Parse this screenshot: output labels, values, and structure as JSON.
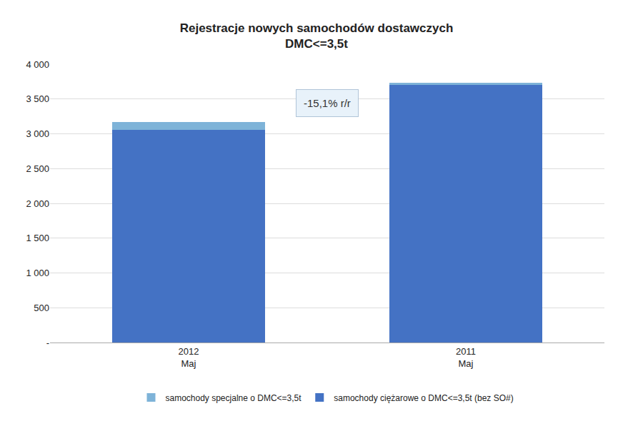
{
  "chart_data": {
    "type": "bar",
    "title": "Rejestracje nowych samochodów dostawczych\nDMC<=3,5t",
    "categories": [
      "2012\nMaj",
      "2011\nMaj"
    ],
    "series": [
      {
        "name": "samochody ciężarowe o DMC<=3,5t (bez SO#)",
        "color": "#4472C4",
        "values": [
          3060,
          3700
        ]
      },
      {
        "name": "samochody specjalne o DMC<=3,5t",
        "color": "#7EB3D8",
        "values": [
          110,
          30
        ]
      }
    ],
    "stacked": true,
    "annotation": "-15,1% r/r",
    "ylim": [
      0,
      4000
    ],
    "yticks": [
      {
        "value": 0,
        "label": "-"
      },
      500,
      {
        "value": 1000,
        "label": "1 000"
      },
      {
        "value": 1500,
        "label": "1 500"
      },
      {
        "value": 2000,
        "label": "2 000"
      },
      {
        "value": 2500,
        "label": "2 500"
      },
      {
        "value": 3000,
        "label": "3 000"
      },
      {
        "value": 3500,
        "label": "3 500"
      },
      {
        "value": 4000,
        "label": "4 000"
      }
    ],
    "grid": true,
    "legend": "bottom"
  }
}
